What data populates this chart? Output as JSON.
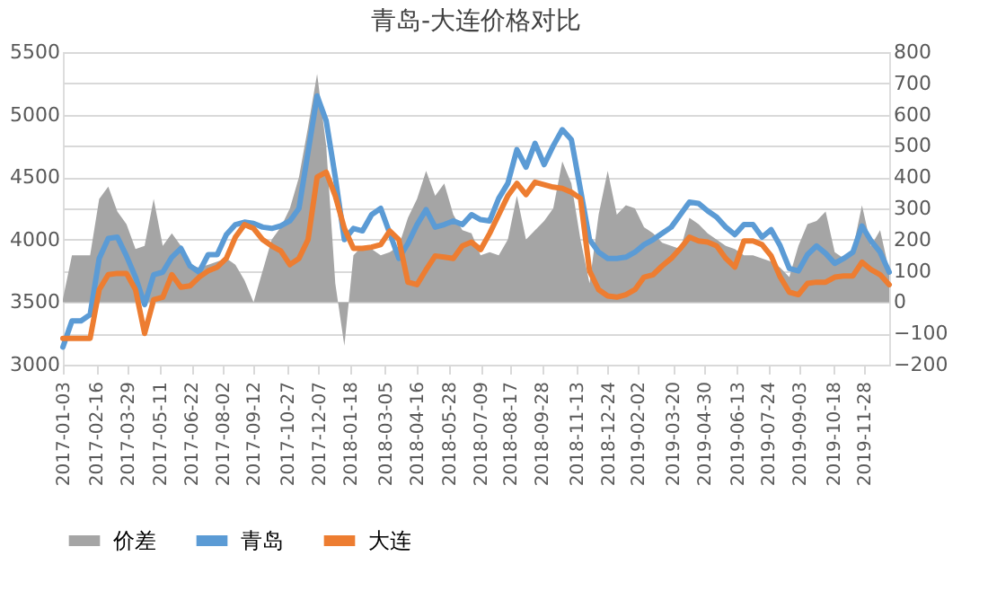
{
  "chart_data": {
    "type": "line",
    "title": "青岛-大连价格对比",
    "x": [
      "2017-01-03",
      "2017-01-15",
      "2017-01-27",
      "2017-02-08",
      "2017-02-20",
      "2017-03-04",
      "2017-03-16",
      "2017-03-28",
      "2017-04-09",
      "2017-04-21",
      "2017-05-03",
      "2017-05-15",
      "2017-05-27",
      "2017-06-08",
      "2017-06-20",
      "2017-07-02",
      "2017-07-14",
      "2017-07-26",
      "2017-08-07",
      "2017-08-19",
      "2017-08-31",
      "2017-09-12",
      "2017-09-24",
      "2017-10-06",
      "2017-10-18",
      "2017-10-30",
      "2017-11-11",
      "2017-11-23",
      "2017-12-05",
      "2017-12-17",
      "2017-12-29",
      "2018-01-10",
      "2018-01-22",
      "2018-02-03",
      "2018-02-15",
      "2018-02-27",
      "2018-03-11",
      "2018-03-23",
      "2018-04-04",
      "2018-04-16",
      "2018-04-28",
      "2018-05-10",
      "2018-05-22",
      "2018-06-03",
      "2018-06-15",
      "2018-06-27",
      "2018-07-09",
      "2018-07-21",
      "2018-08-02",
      "2018-08-14",
      "2018-08-26",
      "2018-09-07",
      "2018-09-19",
      "2018-10-01",
      "2018-10-13",
      "2018-10-25",
      "2018-11-06",
      "2018-11-18",
      "2018-11-30",
      "2018-12-12",
      "2018-12-24",
      "2019-01-05",
      "2019-01-17",
      "2019-01-29",
      "2019-02-10",
      "2019-02-22",
      "2019-03-06",
      "2019-03-18",
      "2019-03-30",
      "2019-04-11",
      "2019-04-23",
      "2019-05-05",
      "2019-05-17",
      "2019-05-29",
      "2019-06-10",
      "2019-06-22",
      "2019-07-04",
      "2019-07-16",
      "2019-07-28",
      "2019-08-09",
      "2019-08-21",
      "2019-09-02",
      "2019-09-14",
      "2019-09-26",
      "2019-10-08",
      "2019-10-20",
      "2019-11-01",
      "2019-11-13",
      "2019-11-25",
      "2019-12-07",
      "2019-12-19",
      "2019-12-31"
    ],
    "series": [
      {
        "name": "价差",
        "type": "area",
        "axis": "y2",
        "color": "#a5a5a5",
        "values": [
          10,
          150,
          150,
          150,
          330,
          370,
          290,
          250,
          170,
          180,
          330,
          180,
          220,
          180,
          120,
          110,
          120,
          130,
          140,
          120,
          70,
          0,
          100,
          200,
          240,
          300,
          400,
          560,
          730,
          500,
          60,
          -140,
          150,
          180,
          170,
          150,
          160,
          180,
          270,
          330,
          420,
          340,
          380,
          280,
          230,
          220,
          150,
          160,
          150,
          200,
          340,
          200,
          230,
          260,
          300,
          450,
          380,
          200,
          60,
          280,
          420,
          280,
          310,
          300,
          240,
          220,
          190,
          180,
          170,
          270,
          250,
          220,
          200,
          180,
          170,
          150,
          150,
          140,
          130,
          110,
          80,
          180,
          250,
          260,
          290,
          160,
          140,
          170,
          310,
          180,
          230,
          100
        ]
      },
      {
        "name": "青岛",
        "color": "#5b9bd5",
        "values": [
          3140,
          3350,
          3350,
          3400,
          3850,
          4010,
          4020,
          3870,
          3700,
          3480,
          3720,
          3740,
          3860,
          3930,
          3790,
          3740,
          3880,
          3880,
          4040,
          4120,
          4140,
          4130,
          4100,
          4090,
          4110,
          4150,
          4250,
          4700,
          5150,
          4950,
          4500,
          4000,
          4090,
          4070,
          4200,
          4250,
          4050,
          3850,
          3970,
          4120,
          4240,
          4100,
          4120,
          4150,
          4120,
          4200,
          4160,
          4150,
          4330,
          4450,
          4720,
          4580,
          4770,
          4600,
          4750,
          4880,
          4800,
          4400,
          4000,
          3900,
          3850,
          3850,
          3860,
          3900,
          3960,
          4000,
          4050,
          4100,
          4200,
          4300,
          4290,
          4230,
          4180,
          4100,
          4040,
          4120,
          4120,
          4020,
          4080,
          3950,
          3770,
          3750,
          3880,
          3950,
          3890,
          3810,
          3850,
          3900,
          4110,
          3990,
          3900,
          3740
        ]
      },
      {
        "name": "大连",
        "color": "#ed7d31",
        "values": [
          3210,
          3210,
          3210,
          3210,
          3600,
          3720,
          3730,
          3730,
          3600,
          3250,
          3520,
          3540,
          3720,
          3620,
          3630,
          3700,
          3750,
          3780,
          3850,
          4020,
          4120,
          4090,
          4000,
          3950,
          3910,
          3800,
          3850,
          4000,
          4500,
          4540,
          4350,
          4090,
          3930,
          3930,
          3940,
          3960,
          4070,
          4000,
          3660,
          3640,
          3760,
          3870,
          3860,
          3850,
          3950,
          3980,
          3920,
          4050,
          4200,
          4350,
          4450,
          4360,
          4460,
          4440,
          4420,
          4410,
          4380,
          4330,
          3750,
          3600,
          3550,
          3540,
          3560,
          3600,
          3700,
          3720,
          3790,
          3850,
          3930,
          4020,
          3990,
          3980,
          3950,
          3850,
          3780,
          3990,
          3990,
          3960,
          3870,
          3700,
          3580,
          3560,
          3650,
          3660,
          3660,
          3700,
          3710,
          3710,
          3820,
          3760,
          3720,
          3640
        ]
      }
    ],
    "xlim": [
      "2017-01-03",
      "2019-12-31"
    ],
    "xticks": [
      {
        "value": "2017-01-03",
        "label": "2017-01-03"
      },
      {
        "value": "2017-02-16",
        "label": "2017-02-16"
      },
      {
        "value": "2017-03-29",
        "label": "2017-03-29"
      },
      {
        "value": "2017-05-11",
        "label": "2017-05-11"
      },
      {
        "value": "2017-06-22",
        "label": "2017-06-22"
      },
      {
        "value": "2017-08-02",
        "label": "2017-08-02"
      },
      {
        "value": "2017-09-12",
        "label": "2017-09-12"
      },
      {
        "value": "2017-10-27",
        "label": "2017-10-27"
      },
      {
        "value": "2017-12-07",
        "label": "2017-12-07"
      },
      {
        "value": "2018-01-18",
        "label": "2018-01-18"
      },
      {
        "value": "2018-03-05",
        "label": "2018-03-05"
      },
      {
        "value": "2018-04-16",
        "label": "2018-04-16"
      },
      {
        "value": "2018-05-28",
        "label": "2018-05-28"
      },
      {
        "value": "2018-07-09",
        "label": "2018-07-09"
      },
      {
        "value": "2018-08-17",
        "label": "2018-08-17"
      },
      {
        "value": "2018-09-28",
        "label": "2018-09-28"
      },
      {
        "value": "2018-11-13",
        "label": "2018-11-13"
      },
      {
        "value": "2018-12-24",
        "label": "2018-12-24"
      },
      {
        "value": "2019-02-02",
        "label": "2019-02-02"
      },
      {
        "value": "2019-03-20",
        "label": "2019-03-20"
      },
      {
        "value": "2019-04-30",
        "label": "2019-04-30"
      },
      {
        "value": "2019-06-13",
        "label": "2019-06-13"
      },
      {
        "value": "2019-07-24",
        "label": "2019-07-24"
      },
      {
        "value": "2019-09-03",
        "label": "2019-09-03"
      },
      {
        "value": "2019-10-18",
        "label": "2019-10-18"
      },
      {
        "value": "2019-11-28",
        "label": "2019-11-28"
      }
    ],
    "ylim": [
      3000,
      5500
    ],
    "yticks": [
      3000,
      3500,
      4000,
      4500,
      5000,
      5500
    ],
    "y2lim": [
      -200,
      800
    ],
    "y2ticks": [
      -200,
      -100,
      0,
      100,
      200,
      300,
      400,
      500,
      600,
      700,
      800
    ],
    "grid": "y",
    "legend": "bottom",
    "marker": "none",
    "line_style": "solid"
  }
}
